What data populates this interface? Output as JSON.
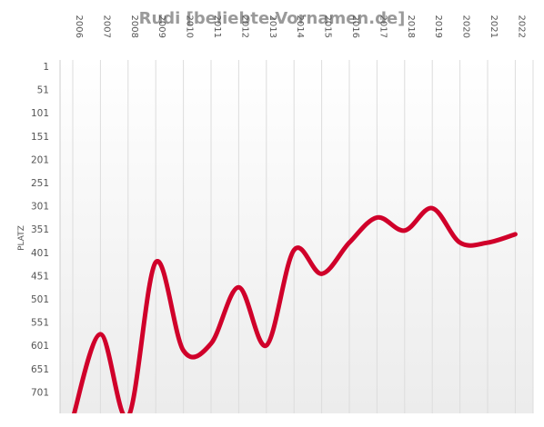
{
  "chart_data": {
    "type": "line",
    "title": "Rudi [beliebte-Vornamen.de]",
    "ylabel": "PLATZ",
    "x": [
      "2006",
      "2007",
      "2008",
      "2009",
      "2010",
      "2011",
      "2012",
      "2013",
      "2014",
      "2015",
      "2016",
      "2017",
      "2018",
      "2019",
      "2020",
      "2021",
      "2022"
    ],
    "y_ticks": [
      1,
      51,
      101,
      151,
      201,
      251,
      301,
      351,
      401,
      451,
      501,
      551,
      601,
      651,
      701
    ],
    "ylim": [
      1,
      755
    ],
    "y_inverted": true,
    "grid": "vertical",
    "series": [
      {
        "color": "#d0002a",
        "values": [
          758,
          577,
          755,
          422,
          612,
          597,
          476,
          601,
          396,
          447,
          380,
          326,
          354,
          306,
          380,
          380,
          362
        ]
      }
    ]
  }
}
